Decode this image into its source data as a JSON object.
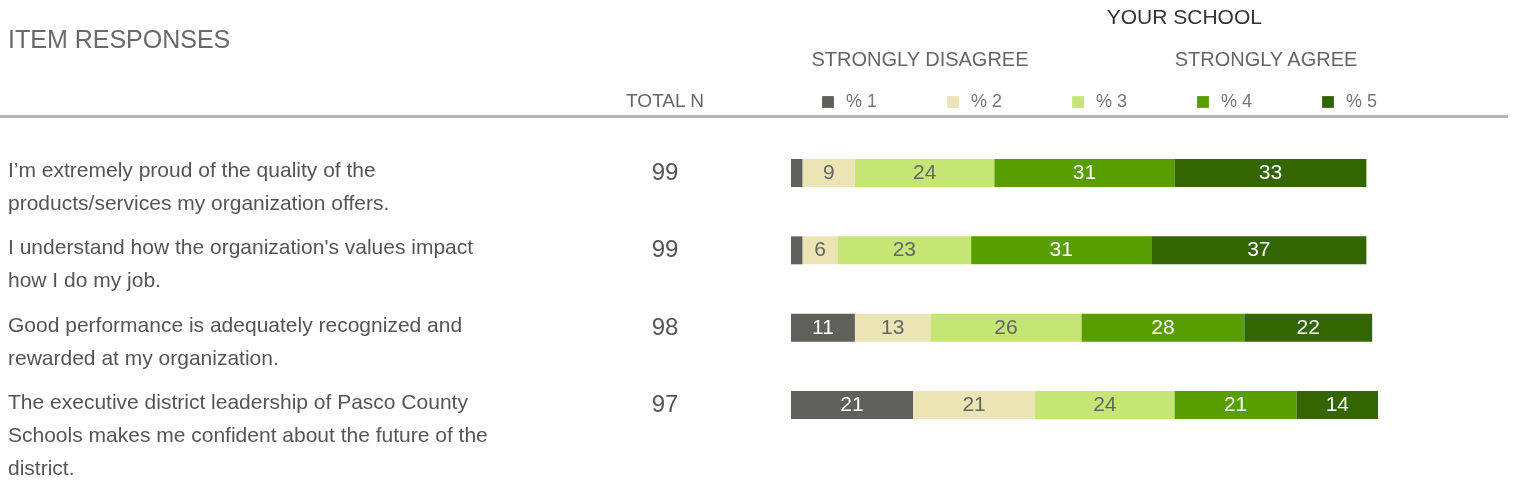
{
  "chart_data": [
    {
      "type": "other",
      "title": "ITEM RESPONSES",
      "xlabel": "TOTAL N",
      "categories": [
        "I’m extremely proud of the quality of the products/services my organization offers.",
        "I understand how the organization's values impact how I do my job.",
        "Good performance is adequately recognized and rewarded at my organization.",
        "The executive district leadership of Pasco County Schools makes me confident about the future of the district."
      ],
      "values": [
        99,
        99,
        98,
        97
      ],
      "data_labels": true
    },
    {
      "type": "bar",
      "title": "YOUR SCHOOL",
      "annotations": [
        "STRONGLY DISAGREE",
        "STRONGLY AGREE"
      ],
      "orientation": "horizontal",
      "stacked": true,
      "legend": "top",
      "tick_labels": false,
      "xlim": [
        0,
        101
      ],
      "categories": [
        null,
        null,
        null,
        null
      ],
      "series": [
        {
          "name": "% 1",
          "color": "#5f605a",
          "values": [
            2,
            2,
            11,
            21
          ],
          "value_labels": [
            null,
            null,
            "11",
            "21"
          ]
        },
        {
          "name": "% 2",
          "color": "#ebe5b5",
          "values": [
            9,
            6,
            13,
            21
          ],
          "value_labels": [
            "9",
            "6",
            "13",
            "21"
          ]
        },
        {
          "name": "% 3",
          "color": "#c5e574",
          "values": [
            24,
            23,
            26,
            24
          ],
          "value_labels": [
            "24",
            "23",
            "26",
            "24"
          ]
        },
        {
          "name": "% 4",
          "color": "#589e00",
          "values": [
            31,
            31,
            28,
            21
          ],
          "value_labels": [
            "31",
            "31",
            "28",
            "21"
          ]
        },
        {
          "name": "% 5",
          "color": "#336600",
          "values": [
            33,
            37,
            22,
            14
          ],
          "value_labels": [
            "33",
            "37",
            "22",
            "14"
          ]
        }
      ]
    }
  ]
}
